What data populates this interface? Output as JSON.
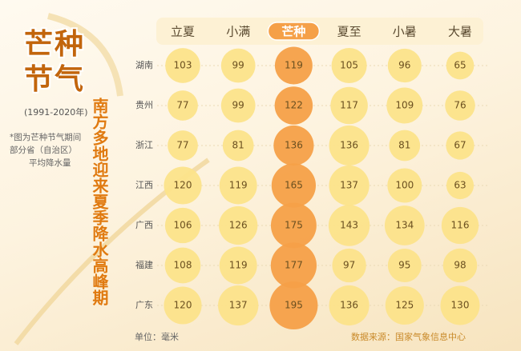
{
  "chart_data": {
    "type": "bubble-grid",
    "title": "芒种节气",
    "subtitle": "(1991-2020年)",
    "headline": "南方多地迎来夏季降水高峰期",
    "note": [
      "*图为芒种节气期间",
      "部分省（自治区）",
      "平均降水量"
    ],
    "unit": "单位：毫米",
    "source": "数据来源：国家气象信息中心",
    "categories": [
      "立夏",
      "小满",
      "芒种",
      "夏至",
      "小暑",
      "大暑"
    ],
    "category_colors": [
      "#fce38a",
      "#fce38a",
      "#f5a048",
      "#fce38a",
      "#fce38a",
      "#fce38a"
    ],
    "series": [
      {
        "name": "湖南",
        "values": [
          103,
          99,
          119,
          105,
          96,
          65
        ]
      },
      {
        "name": "贵州",
        "values": [
          77,
          99,
          122,
          117,
          109,
          76
        ]
      },
      {
        "name": "浙江",
        "values": [
          77,
          81,
          136,
          136,
          81,
          67
        ]
      },
      {
        "name": "江西",
        "values": [
          120,
          119,
          165,
          137,
          100,
          63
        ]
      },
      {
        "name": "广西",
        "values": [
          106,
          126,
          175,
          143,
          134,
          116
        ]
      },
      {
        "name": "福建",
        "values": [
          108,
          119,
          177,
          97,
          95,
          98
        ]
      },
      {
        "name": "广东",
        "values": [
          120,
          137,
          195,
          136,
          125,
          130
        ]
      }
    ]
  }
}
